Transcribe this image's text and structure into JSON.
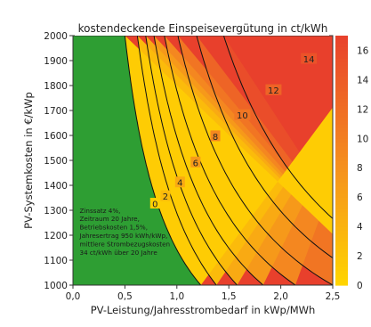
{
  "chart_data": {
    "type": "heatmap",
    "title": "kostendeckende Einspeisevergütung in ct/kWh",
    "xlabel": "PV-Leistung/Jahresstrombedarf in kWp/MWh",
    "ylabel": "PV-Systemkosten in €/kWp",
    "xlim": [
      0,
      2.5
    ],
    "ylim": [
      1000,
      2000
    ],
    "x_ticks": [
      "0,0",
      "0,5",
      "1,0",
      "1,5",
      "2,0",
      "2,5"
    ],
    "x_tick_values": [
      0,
      0.5,
      1.0,
      1.5,
      2.0,
      2.5
    ],
    "y_ticks": [
      "1000",
      "1100",
      "1200",
      "1300",
      "1400",
      "1500",
      "1600",
      "1700",
      "1800",
      "1900",
      "2000"
    ],
    "y_tick_values": [
      1000,
      1100,
      1200,
      1300,
      1400,
      1500,
      1600,
      1700,
      1800,
      1900,
      2000
    ],
    "colorbar_ticks": [
      "0",
      "2",
      "4",
      "6",
      "8",
      "10",
      "12",
      "14",
      "16"
    ],
    "colorbar_values": [
      0,
      2,
      4,
      6,
      8,
      10,
      12,
      14,
      16
    ],
    "colorbar_range": [
      0,
      17
    ],
    "contour_levels": [
      {
        "value": 0,
        "label": "0",
        "x_at_2000": 0.5,
        "x_at_1000": 1.23
      },
      {
        "value": 2,
        "label": "2",
        "x_at_2000": 0.62,
        "x_at_1000": 1.38
      },
      {
        "value": 4,
        "label": "4",
        "x_at_2000": 0.7,
        "x_at_1000": 1.58
      },
      {
        "value": 6,
        "label": "6",
        "x_at_2000": 0.78,
        "x_at_1000": 1.83
      },
      {
        "value": 8,
        "label": "8",
        "x_at_2000": 0.88,
        "x_at_1000": 2.14
      },
      {
        "value": 10,
        "label": "10",
        "x_at_2000": 1.01,
        "x_at_1000": 2.5
      },
      {
        "value": 12,
        "label": "12",
        "x_at_2000": 1.19,
        "x_at_1000": 2.95
      },
      {
        "value": 14,
        "label": "14",
        "x_at_2000": 1.45,
        "x_at_1000": 3.55
      }
    ],
    "contour_label_points": [
      {
        "label": "0",
        "x": 0.79,
        "y": 1325
      },
      {
        "label": "2",
        "x": 0.89,
        "y": 1355
      },
      {
        "label": "4",
        "x": 1.03,
        "y": 1410
      },
      {
        "label": "6",
        "x": 1.18,
        "y": 1490
      },
      {
        "label": "8",
        "x": 1.37,
        "y": 1595
      },
      {
        "label": "10",
        "x": 1.63,
        "y": 1680
      },
      {
        "label": "12",
        "x": 1.93,
        "y": 1780
      },
      {
        "label": "14",
        "x": 2.27,
        "y": 1905
      }
    ],
    "colors": {
      "negative": "#2e9e33",
      "zero": "#ffd400",
      "mid": "#f5901e",
      "high": "#e8402c"
    },
    "annotation": [
      "Zinssatz 4%,",
      "Zeitraum 20 Jahre,",
      "Betriebskosten 1,5%,",
      "Jahresertrag 950 kWh/kWp,",
      "mittlere Strombezugskosten",
      "34 ct/kWh über 20 Jahre"
    ]
  }
}
